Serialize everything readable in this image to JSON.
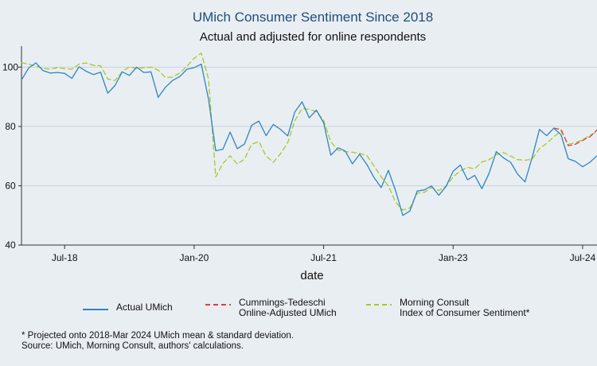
{
  "header": {
    "title": "UMich Consumer Sentiment Since 2018",
    "subtitle": "Actual and adjusted for online respondents"
  },
  "legend": {
    "actual": "Actual UMich",
    "ct_line1": "Cummings-Tedeschi",
    "ct_line2": "Online-Adjusted UMich",
    "mc_line1": "Morning Consult",
    "mc_line2": "Index of Consumer Sentiment*"
  },
  "notes": {
    "line1": "* Projected onto 2018-Mar 2024 UMich mean & standard deviation.",
    "line2": "Source: UMich, Morning Consult, authors' calculations."
  },
  "colors": {
    "background": "#e9eef3",
    "title": "#1f4e79",
    "actual": "#2e86c1",
    "ct": "#e04040",
    "mc": "#a8c922",
    "grid": "#c9d3dc"
  },
  "chart_data": {
    "type": "line",
    "title": "UMich Consumer Sentiment Since 2018",
    "subtitle": "Actual and adjusted for online respondents",
    "xlabel": "date",
    "ylabel": "",
    "x_ticks": [
      "Jul-18",
      "Jan-20",
      "Jul-21",
      "Jan-23",
      "Jul-24"
    ],
    "y_ticks": [
      "100",
      "80",
      "60",
      "40"
    ],
    "ylim": [
      40,
      106
    ],
    "xlim": [
      "2018-01",
      "2024-09"
    ],
    "grid": "horizontal",
    "legend_position": "bottom",
    "series": [
      {
        "name": "Actual UMich",
        "color": "#2e86c1",
        "style": "solid",
        "x": [
          "2018-01",
          "2018-02",
          "2018-03",
          "2018-04",
          "2018-05",
          "2018-06",
          "2018-07",
          "2018-08",
          "2018-09",
          "2018-10",
          "2018-11",
          "2018-12",
          "2019-01",
          "2019-02",
          "2019-03",
          "2019-04",
          "2019-05",
          "2019-06",
          "2019-07",
          "2019-08",
          "2019-09",
          "2019-10",
          "2019-11",
          "2019-12",
          "2020-01",
          "2020-02",
          "2020-03",
          "2020-04",
          "2020-05",
          "2020-06",
          "2020-07",
          "2020-08",
          "2020-09",
          "2020-10",
          "2020-11",
          "2020-12",
          "2021-01",
          "2021-02",
          "2021-03",
          "2021-04",
          "2021-05",
          "2021-06",
          "2021-07",
          "2021-08",
          "2021-09",
          "2021-10",
          "2021-11",
          "2021-12",
          "2022-01",
          "2022-02",
          "2022-03",
          "2022-04",
          "2022-05",
          "2022-06",
          "2022-07",
          "2022-08",
          "2022-09",
          "2022-10",
          "2022-11",
          "2022-12",
          "2023-01",
          "2023-02",
          "2023-03",
          "2023-04",
          "2023-05",
          "2023-06",
          "2023-07",
          "2023-08",
          "2023-09",
          "2023-10",
          "2023-11",
          "2023-12",
          "2024-01",
          "2024-02",
          "2024-03",
          "2024-04",
          "2024-05",
          "2024-06",
          "2024-07",
          "2024-08",
          "2024-09"
        ],
        "values": [
          95.7,
          99.7,
          101.4,
          98.8,
          98.0,
          98.2,
          97.9,
          96.2,
          100.1,
          98.6,
          97.5,
          98.3,
          91.2,
          93.8,
          98.4,
          97.2,
          100.0,
          98.2,
          98.4,
          89.8,
          93.2,
          95.5,
          96.8,
          99.3,
          99.8,
          101.0,
          89.1,
          71.8,
          72.3,
          78.1,
          72.5,
          74.1,
          80.4,
          81.8,
          76.9,
          80.7,
          79.0,
          76.8,
          84.9,
          88.3,
          82.9,
          85.5,
          81.2,
          70.3,
          72.8,
          71.7,
          67.4,
          70.6,
          67.2,
          62.8,
          59.4,
          65.2,
          58.4,
          50.0,
          51.5,
          58.2,
          58.6,
          59.9,
          56.8,
          59.7,
          64.9,
          67.0,
          62.0,
          63.5,
          59.0,
          64.2,
          71.5,
          69.4,
          67.9,
          63.8,
          61.3,
          69.7,
          79.0,
          76.9,
          79.4,
          77.2,
          69.1,
          68.2,
          66.4,
          67.9,
          70.1
        ]
      },
      {
        "name": "Cummings-Tedeschi Online-Adjusted UMich",
        "color": "#e04040",
        "style": "dashed",
        "x": [
          "2024-03",
          "2024-04",
          "2024-05",
          "2024-06",
          "2024-07",
          "2024-08",
          "2024-09"
        ],
        "values": [
          79.4,
          79.0,
          73.5,
          74.0,
          75.3,
          76.5,
          78.8
        ]
      },
      {
        "name": "Morning Consult Index of Consumer Sentiment*",
        "color": "#a8c922",
        "style": "dashed",
        "x": [
          "2018-01",
          "2018-02",
          "2018-03",
          "2018-04",
          "2018-05",
          "2018-06",
          "2018-07",
          "2018-08",
          "2018-09",
          "2018-10",
          "2018-11",
          "2018-12",
          "2019-01",
          "2019-02",
          "2019-03",
          "2019-04",
          "2019-05",
          "2019-06",
          "2019-07",
          "2019-08",
          "2019-09",
          "2019-10",
          "2019-11",
          "2019-12",
          "2020-01",
          "2020-02",
          "2020-03",
          "2020-04",
          "2020-05",
          "2020-06",
          "2020-07",
          "2020-08",
          "2020-09",
          "2020-10",
          "2020-11",
          "2020-12",
          "2021-01",
          "2021-02",
          "2021-03",
          "2021-04",
          "2021-05",
          "2021-06",
          "2021-07",
          "2021-08",
          "2021-09",
          "2021-10",
          "2021-11",
          "2021-12",
          "2022-01",
          "2022-02",
          "2022-03",
          "2022-04",
          "2022-05",
          "2022-06",
          "2022-07",
          "2022-08",
          "2022-09",
          "2022-10",
          "2022-11",
          "2022-12",
          "2023-01",
          "2023-02",
          "2023-03",
          "2023-04",
          "2023-05",
          "2023-06",
          "2023-07",
          "2023-08",
          "2023-09",
          "2023-10",
          "2023-11",
          "2023-12",
          "2024-01",
          "2024-02",
          "2024-03",
          "2024-04",
          "2024-05",
          "2024-06",
          "2024-07",
          "2024-08",
          "2024-09"
        ],
        "values": [
          101.5,
          101.0,
          100.3,
          99.6,
          99.3,
          99.8,
          99.5,
          99.3,
          101.0,
          101.4,
          100.6,
          100.5,
          96.0,
          95.5,
          98.5,
          100.1,
          99.6,
          99.8,
          100.0,
          99.0,
          96.5,
          96.6,
          98.0,
          100.3,
          103.0,
          104.7,
          96.0,
          63.0,
          67.5,
          70.1,
          67.3,
          69.0,
          74.0,
          74.9,
          70.0,
          67.9,
          70.8,
          74.5,
          82.0,
          86.0,
          85.8,
          85.0,
          82.0,
          74.8,
          72.0,
          71.5,
          71.3,
          70.9,
          70.2,
          66.7,
          63.0,
          60.0,
          54.5,
          51.8,
          52.5,
          57.5,
          57.8,
          59.4,
          58.4,
          59.8,
          63.0,
          65.0,
          66.2,
          65.7,
          68.0,
          68.8,
          70.5,
          71.2,
          70.0,
          68.8,
          68.6,
          69.0,
          72.5,
          74.3,
          76.5,
          78.5,
          74.0,
          74.5,
          75.5,
          77.0,
          78.2
        ]
      }
    ]
  }
}
